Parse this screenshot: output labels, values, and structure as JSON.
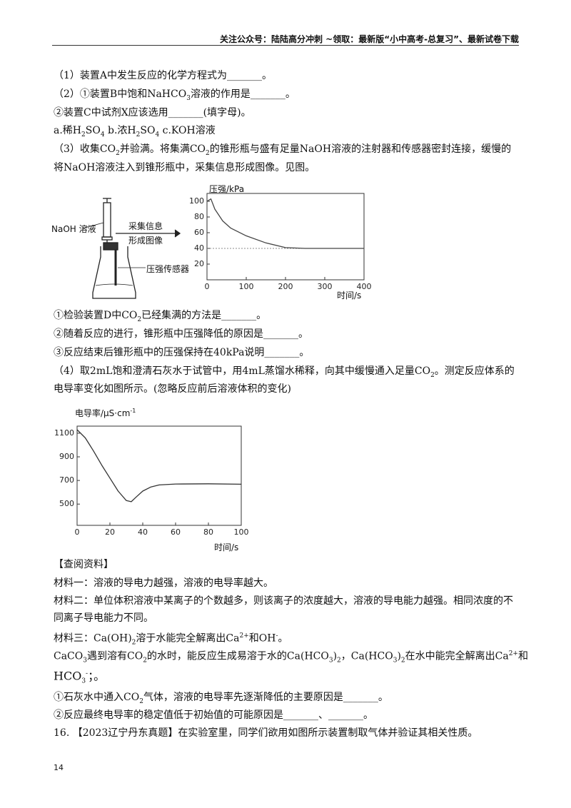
{
  "header": "关注公众号：陆陆高分冲刺 ~领取：最新版“小中高考-总复习”、最新试卷下载",
  "paragraphs": [
    [
      "（1）装置A中发生反应的化学方程式为_______。"
    ],
    [
      "（2）①装置B中饱和NaHCO",
      {
        "sub": "3"
      },
      "溶液的作用是_______。"
    ],
    [
      "②装置C中试剂X应该选用_______(填字母)。"
    ],
    [
      "a.稀H",
      {
        "sub": "2"
      },
      "SO",
      {
        "sub": "4"
      },
      " b.浓H",
      {
        "sub": "2"
      },
      "SO",
      {
        "sub": "4"
      },
      " c.KOH溶液"
    ],
    [
      "（3）收集CO",
      {
        "sub": "2"
      },
      "并验满。将集满CO",
      {
        "sub": "2"
      },
      "的锥形瓶与盛有足量NaOH溶液的注射器和传感器密封连接，缓慢的"
    ],
    [
      "将NaOH溶液注入到锥形瓶中，采集信息形成图像。见图。"
    ],
    [
      "①检验装置D中CO",
      {
        "sub": "2"
      },
      "已经集满的方法是_______。"
    ],
    [
      "②随着反应的进行，锥形瓶中压强降低的原因是_______。"
    ],
    [
      "③反应结束后锥形瓶中的压强保持在40kPa说明_______。"
    ],
    [
      "（4）取2mL饱和澄清石灰水于试管中，用4mL蒸馏水稀释，向其中缓慢通入足量CO",
      {
        "sub": "2"
      },
      "。测定反应体系的"
    ],
    [
      "电导率变化如图所示。(忽略反应前后溶液体积的变化)"
    ],
    [
      "【查阅资料】"
    ],
    [
      "材料一：溶液的导电力越强，溶液的电导率越大。"
    ],
    [
      "材料二：单位体积溶液中某离子的个数越多，则该离子的浓度越大，溶液的导电能力越强。相同浓度的不"
    ],
    [
      "同离子导电能力不同。"
    ],
    [
      "材料三：Ca(OH)",
      {
        "sub": "2"
      },
      "溶于水能完全解离出Ca",
      {
        "sup": "2+"
      },
      "和OH",
      {
        "sup": "-"
      },
      "。"
    ],
    [
      "CaCO",
      {
        "sub": "3"
      },
      "遇到溶有CO",
      {
        "sub": "2"
      },
      "的水时，能反应生成易溶于水的Ca(HCO",
      {
        "sub": "3"
      },
      ")",
      {
        "sub": "2"
      },
      "，Ca(HCO",
      {
        "sub": "3"
      },
      ")",
      {
        "sub": "2"
      },
      "在水中能完全解离出Ca",
      {
        "sup": "2+"
      },
      "和"
    ],
    [
      "HCO",
      {
        "sub": "3"
      },
      {
        "sup": "-"
      },
      "；。"
    ],
    [
      "①石灰水中通入CO",
      {
        "sub": "2"
      },
      "气体，溶液的电导率先逐渐降低的主要原因是_______。"
    ],
    [
      "②反应最终电导率的稳定值低于初始值的可能原因是_______、_______。"
    ],
    [
      "16. 【2023辽宁丹东真题】在实验室里，同学们欲用如图所示装置制取气体并验证其相关性质。"
    ]
  ],
  "figure1": {
    "apparatus_labels": [
      "NaOH 溶液",
      "采集信息",
      "形成图像",
      "压强传感器"
    ],
    "chart": {
      "type": "line",
      "ylabel": [
        "压强/kPa"
      ],
      "xlabel": "时间/s",
      "x": [
        0,
        10,
        20,
        40,
        60,
        100,
        150,
        200,
        250,
        300,
        400
      ],
      "values": [
        100,
        103,
        90,
        75,
        66,
        56,
        47,
        41,
        40,
        40,
        40
      ],
      "xlim": [
        0,
        400
      ],
      "ylim": [
        0,
        110
      ],
      "xticks": [
        0,
        100,
        200,
        300,
        400
      ],
      "yticks": [
        20,
        40,
        60,
        80,
        100
      ],
      "reference_line": 40,
      "color": "#444444"
    }
  },
  "figure2": {
    "chart": {
      "type": "line",
      "ylabel": [
        "电导率/μS·cm",
        {
          "sup": "-1"
        }
      ],
      "xlabel": "时间/s",
      "x": [
        0,
        5,
        10,
        15,
        20,
        25,
        30,
        33,
        36,
        40,
        45,
        50,
        60,
        80,
        100
      ],
      "values": [
        1130,
        1060,
        950,
        830,
        720,
        610,
        530,
        520,
        560,
        610,
        645,
        662,
        670,
        672,
        668
      ],
      "xlim": [
        0,
        100
      ],
      "ylim": [
        320,
        1160
      ],
      "xticks": [
        0,
        20,
        40,
        60,
        80,
        100
      ],
      "yticks": [
        500,
        700,
        900,
        1100
      ],
      "color": "#333333"
    }
  },
  "page_number": "14"
}
